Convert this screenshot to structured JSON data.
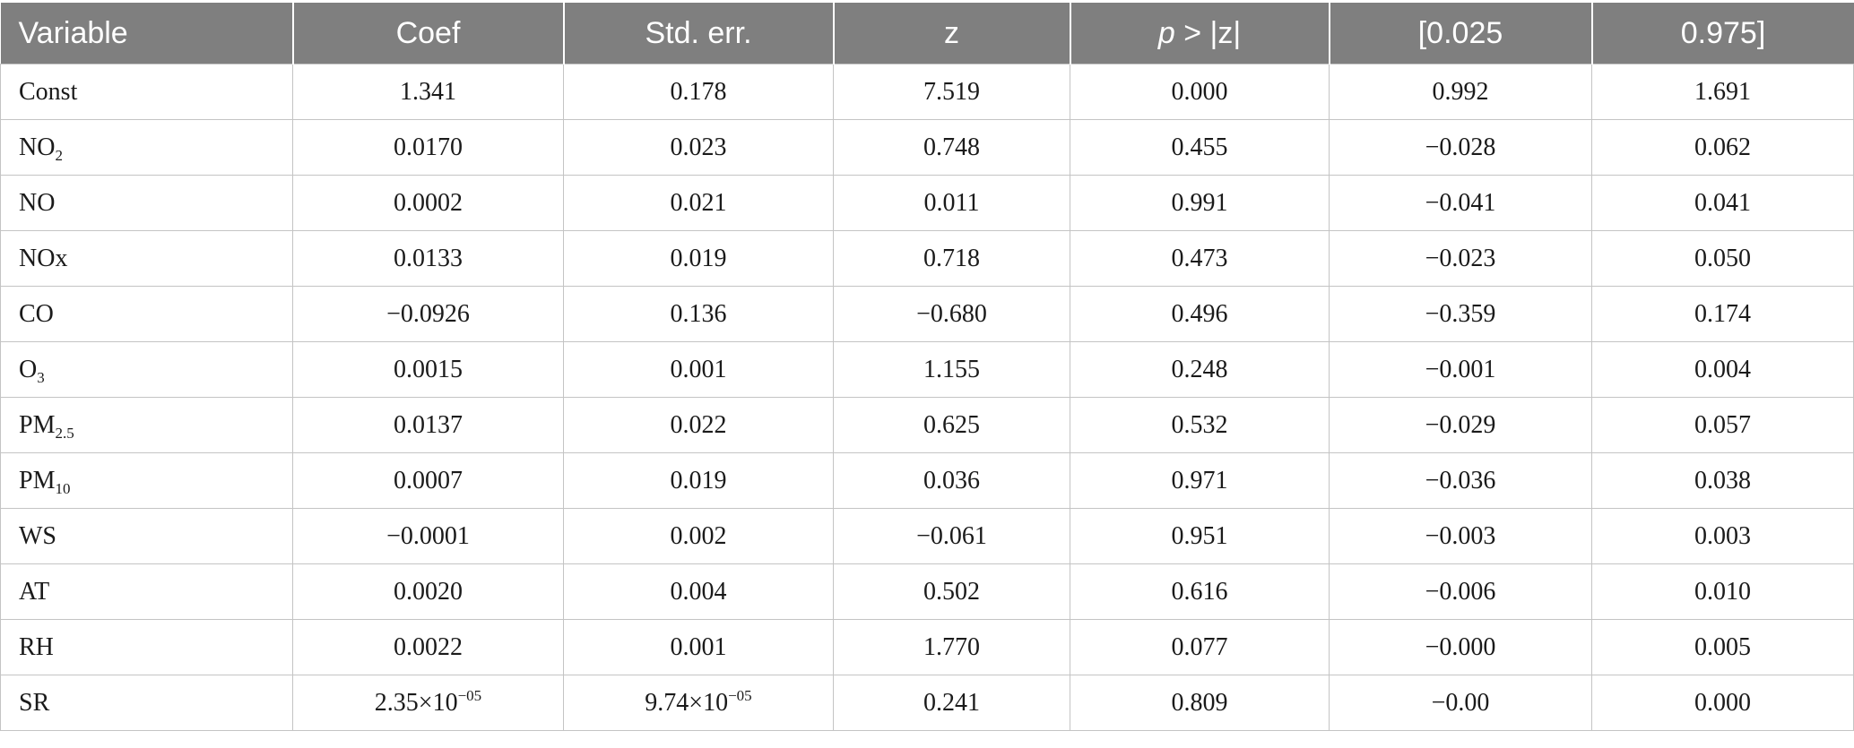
{
  "table": {
    "headers": {
      "variable": "Variable",
      "coef": "Coef",
      "std_err": "Std. err.",
      "z": "z",
      "p_italic": "p",
      "p_rest": " > |z|",
      "ci_low": "[0.025",
      "ci_high": "0.975]"
    },
    "rows": [
      {
        "var": "Const",
        "coef": "1.341",
        "se": "0.178",
        "z": "7.519",
        "p": "0.000",
        "lo": "0.992",
        "hi": "1.691"
      },
      {
        "var": "NO",
        "var_sub": "2",
        "coef": "0.0170",
        "se": "0.023",
        "z": "0.748",
        "p": "0.455",
        "lo": "−0.028",
        "hi": "0.062"
      },
      {
        "var": "NO",
        "coef": "0.0002",
        "se": "0.021",
        "z": "0.011",
        "p": "0.991",
        "lo": "−0.041",
        "hi": "0.041"
      },
      {
        "var": "NOx",
        "coef": "0.0133",
        "se": "0.019",
        "z": "0.718",
        "p": "0.473",
        "lo": "−0.023",
        "hi": "0.050"
      },
      {
        "var": "CO",
        "coef": "−0.0926",
        "se": "0.136",
        "z": "−0.680",
        "p": "0.496",
        "lo": "−0.359",
        "hi": "0.174"
      },
      {
        "var": "O",
        "var_sub": "3",
        "coef": "0.0015",
        "se": "0.001",
        "z": "1.155",
        "p": "0.248",
        "lo": "−0.001",
        "hi": "0.004"
      },
      {
        "var": "PM",
        "var_sub": "2.5",
        "coef": "0.0137",
        "se": "0.022",
        "z": "0.625",
        "p": "0.532",
        "lo": "−0.029",
        "hi": "0.057"
      },
      {
        "var": "PM",
        "var_sub": "10",
        "coef": "0.0007",
        "se": "0.019",
        "z": "0.036",
        "p": "0.971",
        "lo": "−0.036",
        "hi": "0.038"
      },
      {
        "var": "WS",
        "coef": "−0.0001",
        "se": "0.002",
        "z": "−0.061",
        "p": "0.951",
        "lo": "−0.003",
        "hi": "0.003"
      },
      {
        "var": "AT",
        "coef": "0.0020",
        "se": "0.004",
        "z": "0.502",
        "p": "0.616",
        "lo": "−0.006",
        "hi": "0.010"
      },
      {
        "var": "RH",
        "coef": "0.0022",
        "se": "0.001",
        "z": "1.770",
        "p": "0.077",
        "lo": "−0.000",
        "hi": "0.005"
      },
      {
        "var": "SR",
        "coef": "2.35×10",
        "coef_sup": "−05",
        "se": "9.74×10",
        "se_sup": "−05",
        "z": "0.241",
        "p": "0.809",
        "lo": "−0.00",
        "hi": "0.000"
      }
    ]
  },
  "colors": {
    "header_bg": "#7f7f7f",
    "header_text": "#ffffff",
    "grid": "#c4c4c4"
  }
}
